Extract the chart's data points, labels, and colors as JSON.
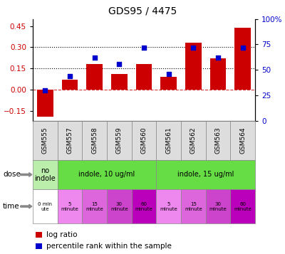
{
  "title": "GDS95 / 4475",
  "samples": [
    "GSM555",
    "GSM557",
    "GSM558",
    "GSM559",
    "GSM560",
    "GSM561",
    "GSM562",
    "GSM563",
    "GSM564"
  ],
  "log_ratio": [
    -0.19,
    0.07,
    0.18,
    0.11,
    0.18,
    0.09,
    0.33,
    0.22,
    0.44
  ],
  "percentile": [
    30,
    44,
    62,
    56,
    72,
    46,
    72,
    62,
    72
  ],
  "bar_color": "#cc0000",
  "dot_color": "#0000cc",
  "ylim_left": [
    -0.22,
    0.5
  ],
  "ylim_right": [
    0,
    100
  ],
  "yticks_left": [
    -0.15,
    0.0,
    0.15,
    0.3,
    0.45
  ],
  "yticks_right": [
    0,
    25,
    50,
    75,
    100
  ],
  "hline_dotted": [
    0.15,
    0.3
  ],
  "hline_dash": 0.0,
  "dose_info": [
    [
      0,
      1,
      "no\nindole",
      "#bbeeaa"
    ],
    [
      1,
      5,
      "indole, 10 ug/ml",
      "#66dd44"
    ],
    [
      5,
      9,
      "indole, 15 ug/ml",
      "#66dd44"
    ]
  ],
  "time_labels": [
    "0 min\nute",
    "5\nminute",
    "15\nminute",
    "30\nminute",
    "60\nminute",
    "5\nminute",
    "15\nminute",
    "30\nminute",
    "60\nminute"
  ],
  "time_colors": [
    "#ffffff",
    "#ee88ee",
    "#dd66dd",
    "#cc44cc",
    "#bb00bb",
    "#ee88ee",
    "#dd66dd",
    "#cc44cc",
    "#bb00bb"
  ],
  "label_color": "#cc0000",
  "legend_bar_label": "log ratio",
  "legend_dot_label": "percentile rank within the sample",
  "gsm_bg": "#dddddd"
}
